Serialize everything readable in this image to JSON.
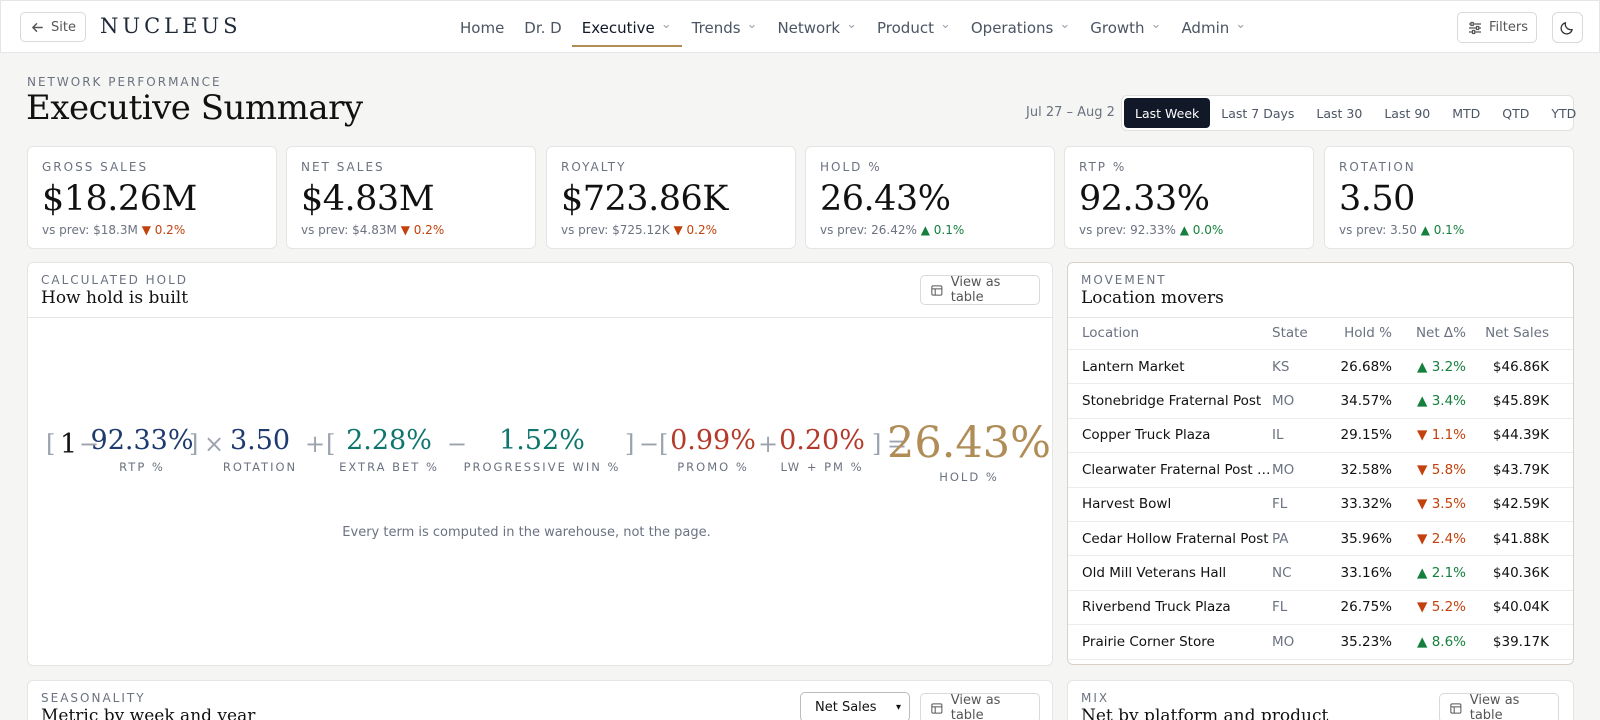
{
  "topbar": {
    "site_label": "Site",
    "brand": "NUCLEUS",
    "nav": [
      {
        "label": "Home",
        "has_menu": false,
        "active": false
      },
      {
        "label": "Dr. D",
        "has_menu": false,
        "active": false
      },
      {
        "label": "Executive",
        "has_menu": true,
        "active": true
      },
      {
        "label": "Trends",
        "has_menu": true,
        "active": false
      },
      {
        "label": "Network",
        "has_menu": true,
        "active": false
      },
      {
        "label": "Product",
        "has_menu": true,
        "active": false
      },
      {
        "label": "Operations",
        "has_menu": true,
        "active": false
      },
      {
        "label": "Growth",
        "has_menu": true,
        "active": false
      },
      {
        "label": "Admin",
        "has_menu": true,
        "active": false
      }
    ],
    "filters_label": "Filters"
  },
  "header": {
    "eyebrow": "NETWORK PERFORMANCE",
    "title": "Executive Summary",
    "date_range": "Jul 27 – Aug 2",
    "ranges": [
      "Last Week",
      "Last 7 Days",
      "Last 30",
      "Last 90",
      "MTD",
      "QTD",
      "YTD"
    ],
    "active_range": "Last Week"
  },
  "kpis": [
    {
      "label": "GROSS SALES",
      "value": "$18.26M",
      "prev": "vs prev: $18.3M",
      "delta": "▼ 0.2%",
      "dir": "down"
    },
    {
      "label": "NET SALES",
      "value": "$4.83M",
      "prev": "vs prev: $4.83M",
      "delta": "▼ 0.2%",
      "dir": "down"
    },
    {
      "label": "ROYALTY",
      "value": "$723.86K",
      "prev": "vs prev: $725.12K",
      "delta": "▼ 0.2%",
      "dir": "down"
    },
    {
      "label": "HOLD %",
      "value": "26.43%",
      "prev": "vs prev: 26.42%",
      "delta": "▲ 0.1%",
      "dir": "up"
    },
    {
      "label": "RTP %",
      "value": "92.33%",
      "prev": "vs prev: 92.33%",
      "delta": "▲ 0.0%",
      "dir": "up"
    },
    {
      "label": "ROTATION",
      "value": "3.50",
      "prev": "vs prev: 3.50",
      "delta": "▲ 0.1%",
      "dir": "up"
    }
  ],
  "hold_panel": {
    "eyebrow": "CALCULATED HOLD",
    "title": "How hold is built",
    "view_table": "View as table",
    "one": "1",
    "terms": {
      "rtp": {
        "value": "92.33%",
        "label": "RTP %"
      },
      "rotation": {
        "value": "3.50",
        "label": "ROTATION"
      },
      "extra_bet": {
        "value": "2.28%",
        "label": "EXTRA BET %"
      },
      "progressive": {
        "value": "1.52%",
        "label": "PROGRESSIVE WIN %"
      },
      "promo": {
        "value": "0.99%",
        "label": "PROMO %"
      },
      "lwpm": {
        "value": "0.20%",
        "label": "LW + PM %"
      },
      "hold": {
        "value": "26.43%",
        "label": "HOLD %"
      }
    },
    "note": "Every term is computed in the warehouse, not the page."
  },
  "movers": {
    "eyebrow": "MOVEMENT",
    "title": "Location movers",
    "columns": [
      "Location",
      "State",
      "Hold %",
      "Net Δ%",
      "Net Sales"
    ],
    "rows": [
      {
        "location": "Lantern Market",
        "state": "KS",
        "hold": "26.68%",
        "delta": "▲ 3.2%",
        "dir": "up",
        "net": "$46.86K"
      },
      {
        "location": "Stonebridge Fraternal Post",
        "state": "MO",
        "hold": "34.57%",
        "delta": "▲ 3.4%",
        "dir": "up",
        "net": "$45.89K"
      },
      {
        "location": "Copper Truck Plaza",
        "state": "IL",
        "hold": "29.15%",
        "delta": "▼ 1.1%",
        "dir": "down",
        "net": "$44.39K"
      },
      {
        "location": "Clearwater Fraternal Post #...",
        "state": "MO",
        "hold": "32.58%",
        "delta": "▼ 5.8%",
        "dir": "down",
        "net": "$43.79K"
      },
      {
        "location": "Harvest Bowl",
        "state": "FL",
        "hold": "33.32%",
        "delta": "▼ 3.5%",
        "dir": "down",
        "net": "$42.59K"
      },
      {
        "location": "Cedar Hollow Fraternal Post",
        "state": "PA",
        "hold": "35.96%",
        "delta": "▼ 2.4%",
        "dir": "down",
        "net": "$41.88K"
      },
      {
        "location": "Old Mill Veterans Hall",
        "state": "NC",
        "hold": "33.16%",
        "delta": "▲ 2.1%",
        "dir": "up",
        "net": "$40.36K"
      },
      {
        "location": "Riverbend Truck Plaza",
        "state": "FL",
        "hold": "26.75%",
        "delta": "▼ 5.2%",
        "dir": "down",
        "net": "$40.04K"
      },
      {
        "location": "Prairie Corner Store",
        "state": "MO",
        "hold": "35.23%",
        "delta": "▲ 8.6%",
        "dir": "up",
        "net": "$39.17K"
      }
    ]
  },
  "seasonality": {
    "eyebrow": "SEASONALITY",
    "title": "Metric by week and year",
    "metric_selected": "Net Sales",
    "view_table": "View as table"
  },
  "mix": {
    "eyebrow": "MIX",
    "title": "Net by platform and product",
    "view_table": "View as table"
  },
  "icons": {
    "back": "arrow-left-icon",
    "filters": "sliders-icon",
    "theme": "moon-icon",
    "table": "table-icon",
    "chevron": "chevron-down-icon"
  }
}
